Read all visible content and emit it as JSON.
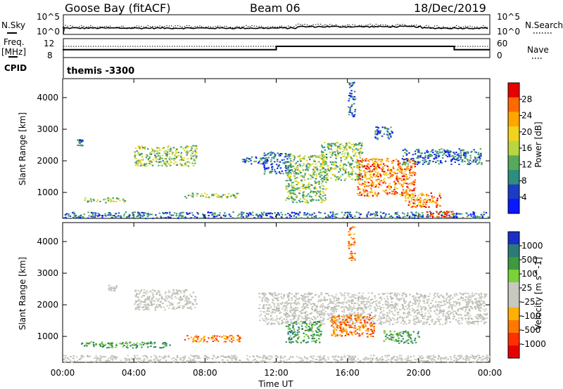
{
  "header": {
    "station": "Goose Bay (fitACF)",
    "beam": "Beam 06",
    "date": "18/Dec/2019"
  },
  "top_panels": {
    "nsky_label": "N.Sky",
    "nsky_ticks": [
      "10^5",
      "10^0"
    ],
    "nsky_right_ticks": [
      "10^5",
      "10^0"
    ],
    "nsearch_label": "N.Search",
    "freq_label": "Freq.",
    "freq_unit": "[MHz]",
    "freq_ticks": [
      "12",
      "8"
    ],
    "nave_ticks": [
      "60",
      "0"
    ],
    "nave_label": "Nave",
    "cpid_label": "CPID",
    "cpid_text": "themis -3300",
    "freq_steps": [
      {
        "from_h": 0,
        "to_h": 12,
        "mhz": 10.8
      },
      {
        "from_h": 12,
        "to_h": 22,
        "mhz": 12.0
      },
      {
        "from_h": 22,
        "to_h": 24,
        "mhz": 10.8
      }
    ]
  },
  "chart_data": [
    {
      "type": "heatmap",
      "title": "Power",
      "ylabel": "Slant Range [km]",
      "xlabel": "",
      "x_ticks": [
        "00:00",
        "04:00",
        "08:00",
        "12:00",
        "16:00",
        "20:00",
        "00:00"
      ],
      "y_ticks": [
        1000,
        2000,
        3000,
        4000
      ],
      "xlim_hours": [
        0,
        24
      ],
      "ylim_km": [
        180,
        4600
      ],
      "colorbar_label": "Power [dB]",
      "colorbar_ticks": [
        "28",
        "24",
        "20",
        "16",
        "12",
        "8",
        "4"
      ],
      "colorbar_colors": [
        "#e80000",
        "#ff6a00",
        "#ffa600",
        "#f2d21c",
        "#b8d640",
        "#56aa5c",
        "#2d8d7e",
        "#1b3dc4",
        "#0a17ff"
      ],
      "regions": [
        {
          "t0": 0.0,
          "t1": 24.0,
          "r0": 200,
          "r1": 400,
          "level": "low"
        },
        {
          "t0": 1.2,
          "t1": 3.5,
          "r0": 700,
          "r1": 850,
          "level": "mid"
        },
        {
          "t0": 6.8,
          "t1": 9.8,
          "r0": 850,
          "r1": 1000,
          "level": "mid"
        },
        {
          "t0": 4.0,
          "t1": 7.5,
          "r0": 1850,
          "r1": 2500,
          "level": "mid"
        },
        {
          "t0": 10.0,
          "t1": 11.5,
          "r0": 1900,
          "r1": 2150,
          "level": "low"
        },
        {
          "t0": 11.2,
          "t1": 12.8,
          "r0": 1600,
          "r1": 2300,
          "level": "low"
        },
        {
          "t0": 12.5,
          "t1": 14.8,
          "r0": 700,
          "r1": 2200,
          "level": "mid"
        },
        {
          "t0": 14.5,
          "t1": 16.8,
          "r0": 1400,
          "r1": 2600,
          "level": "mid"
        },
        {
          "t0": 16.5,
          "t1": 19.8,
          "r0": 900,
          "r1": 2100,
          "level": "high"
        },
        {
          "t0": 19.0,
          "t1": 23.5,
          "r0": 1900,
          "r1": 2400,
          "level": "low"
        },
        {
          "t0": 19.2,
          "t1": 21.2,
          "r0": 550,
          "r1": 1000,
          "level": "high"
        },
        {
          "t0": 20.4,
          "t1": 21.9,
          "r0": 220,
          "r1": 430,
          "level": "peak"
        },
        {
          "t0": 16.0,
          "t1": 16.4,
          "r0": 3400,
          "r1": 4500,
          "level": "low"
        },
        {
          "t0": 17.5,
          "t1": 18.5,
          "r0": 2700,
          "r1": 3100,
          "level": "low"
        },
        {
          "t0": 0.8,
          "t1": 1.1,
          "r0": 2500,
          "r1": 2700,
          "level": "low"
        }
      ]
    },
    {
      "type": "heatmap",
      "title": "Velocity",
      "ylabel": "Slant Range [km]",
      "xlabel": "Time UT",
      "x_ticks": [
        "00:00",
        "04:00",
        "08:00",
        "12:00",
        "16:00",
        "20:00",
        "00:00"
      ],
      "y_ticks": [
        1000,
        2000,
        3000,
        4000
      ],
      "xlim_hours": [
        0,
        24
      ],
      "ylim_km": [
        180,
        4600
      ],
      "colorbar_label": "Velocity [m s^-1]",
      "colorbar_ticks": [
        "1000",
        "500",
        "100",
        "25",
        "-25",
        "-100",
        "-500",
        "-1000"
      ],
      "colorbar_colors": [
        "#1a2fc8",
        "#2c7a78",
        "#3e9a3e",
        "#7ad23a",
        "#c8c8c0",
        "#c8c8c0",
        "#ffb000",
        "#ff7800",
        "#ff3000",
        "#e80000"
      ],
      "regions": [
        {
          "t0": 0.0,
          "t1": 24.0,
          "r0": 200,
          "r1": 420,
          "level": "ground"
        },
        {
          "t0": 1.0,
          "t1": 6.0,
          "r0": 650,
          "r1": 850,
          "level": "pos"
        },
        {
          "t0": 6.8,
          "t1": 10.0,
          "r0": 850,
          "r1": 1050,
          "level": "neg"
        },
        {
          "t0": 4.0,
          "t1": 7.5,
          "r0": 1850,
          "r1": 2500,
          "level": "ground"
        },
        {
          "t0": 11.0,
          "t1": 23.8,
          "r0": 1400,
          "r1": 2400,
          "level": "ground"
        },
        {
          "t0": 12.5,
          "t1": 14.5,
          "r0": 800,
          "r1": 1500,
          "level": "pos"
        },
        {
          "t0": 15.0,
          "t1": 17.5,
          "r0": 1000,
          "r1": 1700,
          "level": "neg"
        },
        {
          "t0": 18.0,
          "t1": 20.0,
          "r0": 800,
          "r1": 1200,
          "level": "pos"
        },
        {
          "t0": 16.0,
          "t1": 16.4,
          "r0": 3400,
          "r1": 4500,
          "level": "neg"
        },
        {
          "t0": 2.5,
          "t1": 3.0,
          "r0": 2450,
          "r1": 2650,
          "level": "ground"
        },
        {
          "t0": 22.5,
          "t1": 23.6,
          "r0": 1900,
          "r1": 2200,
          "level": "ground"
        }
      ]
    }
  ]
}
